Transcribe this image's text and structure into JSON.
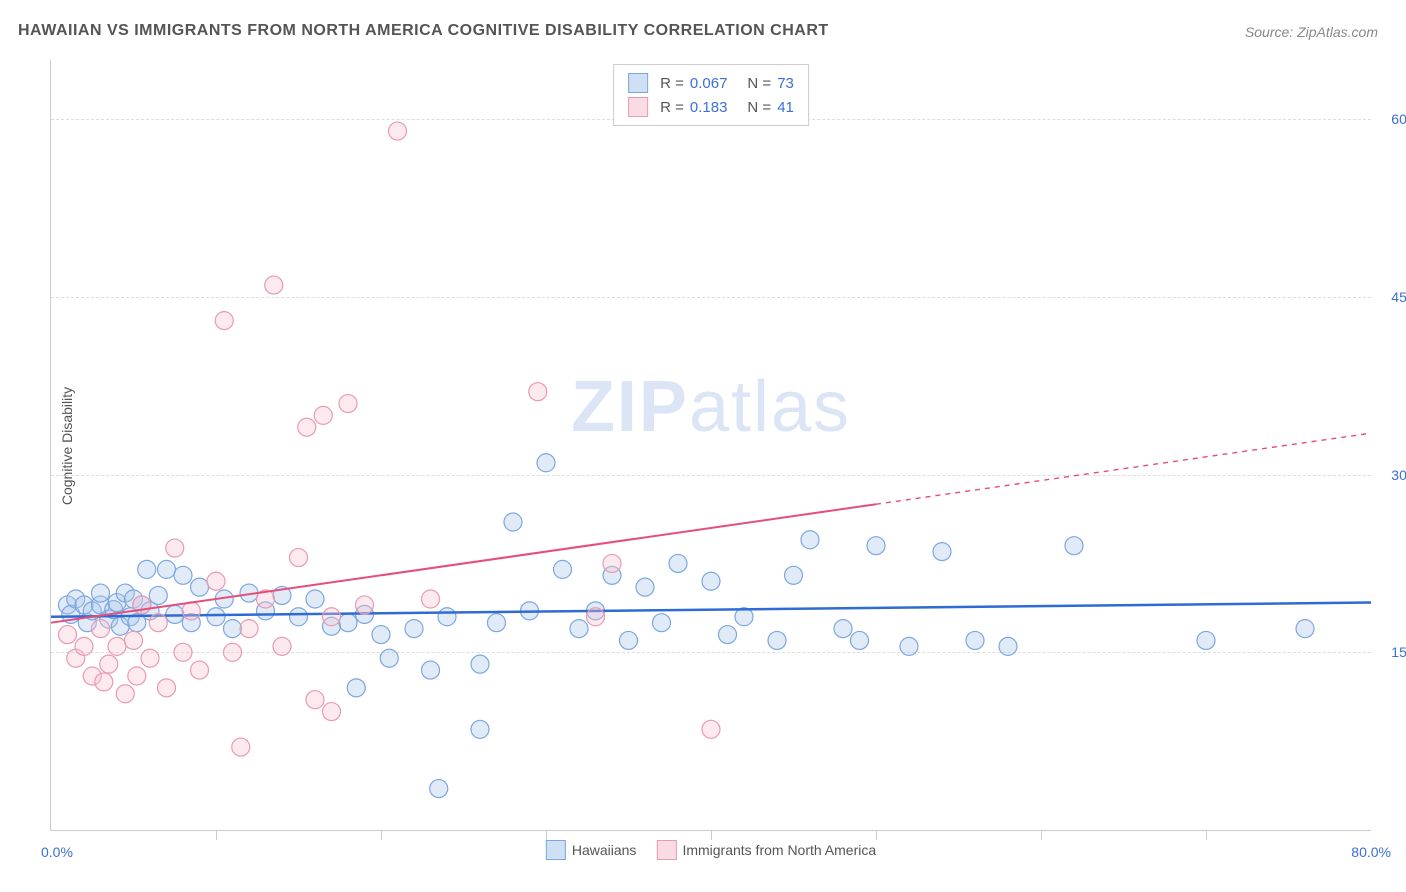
{
  "title": "HAWAIIAN VS IMMIGRANTS FROM NORTH AMERICA COGNITIVE DISABILITY CORRELATION CHART",
  "source": "Source: ZipAtlas.com",
  "ylabel": "Cognitive Disability",
  "watermark_zip": "ZIP",
  "watermark_atlas": "atlas",
  "chart": {
    "type": "scatter",
    "xlim": [
      0,
      80
    ],
    "ylim": [
      0,
      65
    ],
    "x_origin_label": "0.0%",
    "x_max_label": "80.0%",
    "y_gridlines": [
      15,
      30,
      45,
      60
    ],
    "y_tick_labels": [
      "15.0%",
      "30.0%",
      "45.0%",
      "60.0%"
    ],
    "x_ticks": [
      10,
      20,
      30,
      40,
      50,
      60,
      70
    ],
    "background_color": "#ffffff",
    "grid_color": "#dddddd",
    "axis_color": "#cccccc",
    "marker_radius": 9,
    "marker_stroke_width": 1.2,
    "marker_fill_opacity": 0.35,
    "series": [
      {
        "name": "Hawaiians",
        "color_stroke": "#7ba7e0",
        "color_fill": "#a8c5eb",
        "swatch_fill": "#cfe0f5",
        "swatch_border": "#7ba7e0",
        "R": "0.067",
        "N": "73",
        "trend": {
          "y_at_x0": 18.0,
          "y_at_xmax": 19.2,
          "color": "#2e6bd4",
          "width": 2.5,
          "solid_until_x": 80
        },
        "points": [
          [
            1,
            19
          ],
          [
            1.2,
            18.2
          ],
          [
            1.5,
            19.5
          ],
          [
            2,
            19
          ],
          [
            2.2,
            17.5
          ],
          [
            2.5,
            18.5
          ],
          [
            3,
            19
          ],
          [
            3,
            20
          ],
          [
            3.5,
            17.8
          ],
          [
            3.8,
            18.6
          ],
          [
            4,
            19.2
          ],
          [
            4.2,
            17.2
          ],
          [
            4.5,
            20
          ],
          [
            4.8,
            18
          ],
          [
            5,
            19.5
          ],
          [
            5.2,
            17.5
          ],
          [
            5.5,
            19
          ],
          [
            5.8,
            22
          ],
          [
            6,
            18.5
          ],
          [
            6.5,
            19.8
          ],
          [
            7,
            22
          ],
          [
            7.5,
            18.2
          ],
          [
            8,
            21.5
          ],
          [
            8.5,
            17.5
          ],
          [
            9,
            20.5
          ],
          [
            10,
            18
          ],
          [
            10.5,
            19.5
          ],
          [
            11,
            17
          ],
          [
            12,
            20
          ],
          [
            13,
            18.5
          ],
          [
            14,
            19.8
          ],
          [
            15,
            18
          ],
          [
            16,
            19.5
          ],
          [
            17,
            17.2
          ],
          [
            18,
            17.5
          ],
          [
            18.5,
            12
          ],
          [
            19,
            18.2
          ],
          [
            20,
            16.5
          ],
          [
            20.5,
            14.5
          ],
          [
            22,
            17
          ],
          [
            23,
            13.5
          ],
          [
            23.5,
            3.5
          ],
          [
            24,
            18
          ],
          [
            26,
            14
          ],
          [
            26,
            8.5
          ],
          [
            27,
            17.5
          ],
          [
            28,
            26
          ],
          [
            29,
            18.5
          ],
          [
            30,
            31
          ],
          [
            31,
            22
          ],
          [
            32,
            17
          ],
          [
            33,
            18.5
          ],
          [
            34,
            21.5
          ],
          [
            35,
            16
          ],
          [
            36,
            20.5
          ],
          [
            37,
            17.5
          ],
          [
            38,
            22.5
          ],
          [
            40,
            21
          ],
          [
            41,
            16.5
          ],
          [
            42,
            18
          ],
          [
            44,
            16
          ],
          [
            45,
            21.5
          ],
          [
            46,
            24.5
          ],
          [
            48,
            17
          ],
          [
            49,
            16
          ],
          [
            50,
            24
          ],
          [
            52,
            15.5
          ],
          [
            54,
            23.5
          ],
          [
            56,
            16
          ],
          [
            58,
            15.5
          ],
          [
            62,
            24
          ],
          [
            70,
            16
          ],
          [
            76,
            17
          ]
        ]
      },
      {
        "name": "Immigrants from North America",
        "color_stroke": "#e89ab0",
        "color_fill": "#f5c4d2",
        "swatch_fill": "#f9dbe3",
        "swatch_border": "#e89ab0",
        "R": "0.183",
        "N": "41",
        "trend": {
          "y_at_x0": 17.5,
          "y_at_xmax": 33.5,
          "color": "#e54d7a",
          "width": 2,
          "solid_until_x": 50
        },
        "points": [
          [
            1,
            16.5
          ],
          [
            1.5,
            14.5
          ],
          [
            2,
            15.5
          ],
          [
            2.5,
            13
          ],
          [
            3,
            17
          ],
          [
            3.2,
            12.5
          ],
          [
            3.5,
            14
          ],
          [
            4,
            15.5
          ],
          [
            4.5,
            11.5
          ],
          [
            5,
            16
          ],
          [
            5.2,
            13
          ],
          [
            5.5,
            19
          ],
          [
            6,
            14.5
          ],
          [
            6.5,
            17.5
          ],
          [
            7,
            12
          ],
          [
            7.5,
            23.8
          ],
          [
            8,
            15
          ],
          [
            8.5,
            18.5
          ],
          [
            9,
            13.5
          ],
          [
            10,
            21
          ],
          [
            10.5,
            43
          ],
          [
            11,
            15
          ],
          [
            11.5,
            7
          ],
          [
            12,
            17
          ],
          [
            13,
            19.5
          ],
          [
            13.5,
            46
          ],
          [
            14,
            15.5
          ],
          [
            15,
            23
          ],
          [
            15.5,
            34
          ],
          [
            16,
            11
          ],
          [
            16.5,
            35
          ],
          [
            17,
            18
          ],
          [
            17,
            10
          ],
          [
            18,
            36
          ],
          [
            19,
            19
          ],
          [
            21,
            59
          ],
          [
            23,
            19.5
          ],
          [
            29.5,
            37
          ],
          [
            33,
            18
          ],
          [
            34,
            22.5
          ],
          [
            40,
            8.5
          ]
        ]
      }
    ],
    "legend_top": {
      "R_label": "R =",
      "N_label": "N ="
    },
    "legend_bottom_labels": [
      "Hawaiians",
      "Immigrants from North America"
    ]
  }
}
